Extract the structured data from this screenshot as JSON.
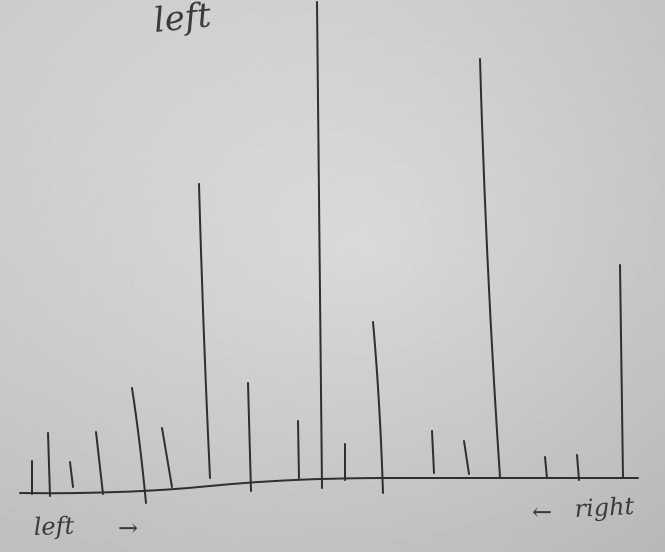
{
  "photo": {
    "paper_color": "#dcdcdc",
    "ink_color": "#2f2f2f",
    "handwritten": {
      "top_label": "left",
      "left_label": "left",
      "left_arrow": "→",
      "right_arrow": "←",
      "right_label": "right"
    },
    "drawing": {
      "description_items": []
    }
  }
}
